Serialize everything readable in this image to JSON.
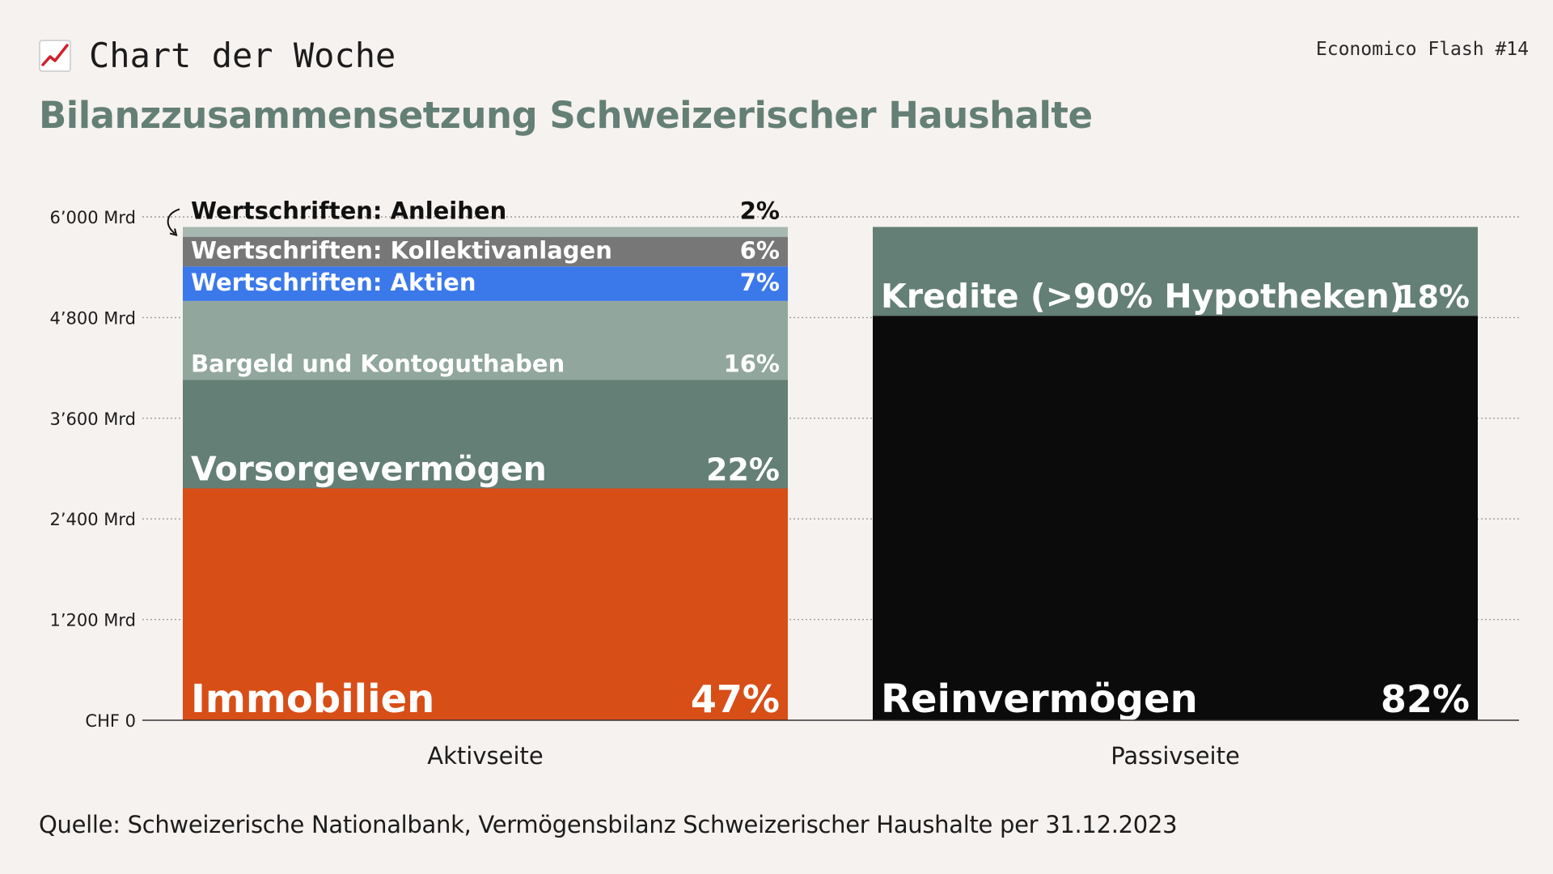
{
  "header": {
    "kicker": "Chart der Woche",
    "kicker_icon": "chart-increasing-icon",
    "issue": "Economico Flash #14",
    "title": "Bilanzzusammensetzung Schweizerischer Haushalte"
  },
  "footer": {
    "source": "Quelle: Schweizerische Nationalbank, Vermögensbilanz Schweizerischer Haushalte per 31.12.2023"
  },
  "chart_data": {
    "type": "bar",
    "stacked": true,
    "unit": "Mrd CHF",
    "ylim": [
      0,
      6000
    ],
    "y_ticks": [
      {
        "value": 0,
        "label": "CHF 0"
      },
      {
        "value": 1200,
        "label": "1’200 Mrd"
      },
      {
        "value": 2400,
        "label": "2’400 Mrd"
      },
      {
        "value": 3600,
        "label": "3’600 Mrd"
      },
      {
        "value": 4800,
        "label": "4’800 Mrd"
      },
      {
        "value": 6000,
        "label": "6’000 Mrd"
      }
    ],
    "grid": true,
    "total": 5880,
    "categories": [
      "Aktivseite",
      "Passivseite"
    ],
    "stacks": [
      {
        "category": "Aktivseite",
        "segments": [
          {
            "name": "Immobilien",
            "pct": 47,
            "pct_label": "47%",
            "color": "#d84e17",
            "text_color": "#ffffff",
            "size": "xl"
          },
          {
            "name": "Vorsorgevermögen",
            "pct": 22,
            "pct_label": "22%",
            "color": "#647f75",
            "text_color": "#ffffff",
            "size": "l"
          },
          {
            "name": "Bargeld und Kontoguthaben",
            "pct": 16,
            "pct_label": "16%",
            "color": "#91a69d",
            "text_color": "#ffffff",
            "size": "m"
          },
          {
            "name": "Wertschriften: Aktien",
            "pct": 7,
            "pct_label": "7%",
            "color": "#3b78ea",
            "text_color": "#ffffff",
            "size": "m"
          },
          {
            "name": "Wertschriften: Kollektivanlagen",
            "pct": 6,
            "pct_label": "6%",
            "color": "#777777",
            "text_color": "#ffffff",
            "size": "m"
          },
          {
            "name": "Wertschriften: Anleihen",
            "pct": 2,
            "pct_label": "2%",
            "color": "#a7b8b1",
            "text_color": "#111111",
            "size": "m",
            "label_outside": true
          }
        ]
      },
      {
        "category": "Passivseite",
        "segments": [
          {
            "name": "Reinvermögen",
            "pct": 82,
            "pct_label": "82%",
            "color": "#0b0b0b",
            "text_color": "#ffffff",
            "size": "xl"
          },
          {
            "name": "Kredite (>90% Hypotheken)",
            "pct": 18,
            "pct_label": "18%",
            "color": "#647f75",
            "text_color": "#ffffff",
            "size": "l"
          }
        ]
      }
    ]
  }
}
